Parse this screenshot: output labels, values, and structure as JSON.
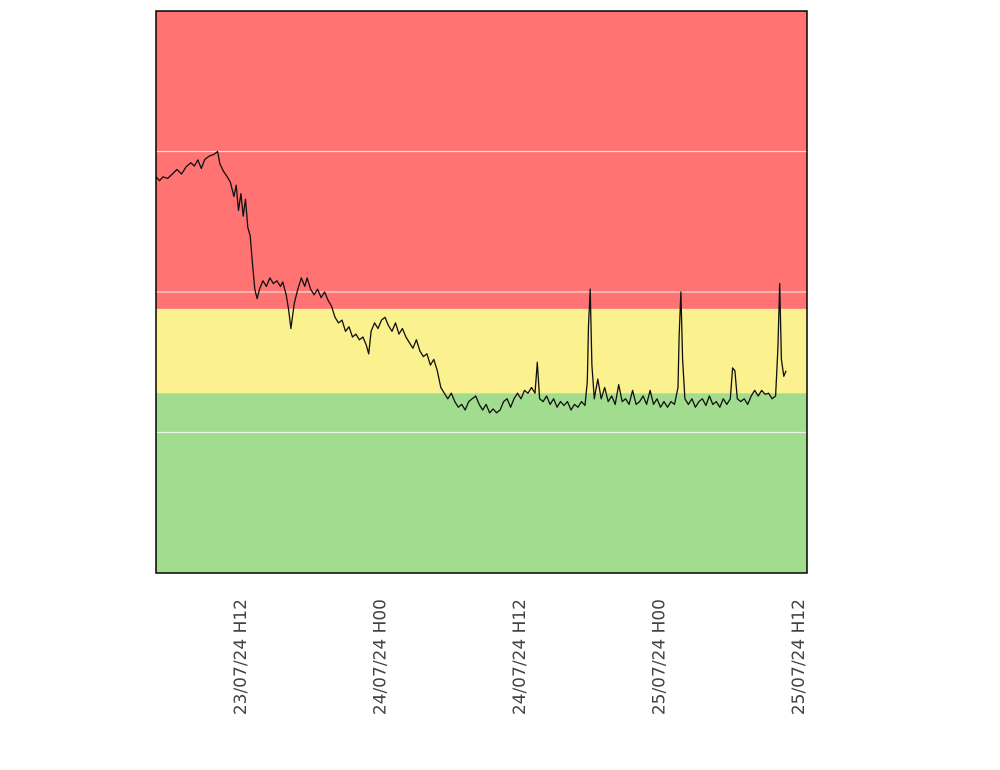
{
  "chart_data": {
    "type": "line",
    "title": "",
    "xlabel": "",
    "ylabel": "",
    "x_ticks": [
      "23/07/24 H12",
      "24/07/24 H00",
      "24/07/24 H12",
      "25/07/24 H00",
      "25/07/24 H12"
    ],
    "x_range": [
      "23/07/24 H04",
      "25/07/24 H12"
    ],
    "y_range": [
      0,
      100
    ],
    "grid": true,
    "grid_y": [
      25,
      50,
      75
    ],
    "bands": [
      {
        "from": 0,
        "to": 32,
        "color": "#a2dc8e"
      },
      {
        "from": 32,
        "to": 47,
        "color": "#fbf18f"
      },
      {
        "from": 47,
        "to": 100,
        "color": "#ff7373"
      }
    ],
    "line_color": "#111111",
    "series": [
      {
        "values": [
          [
            0.0,
            70.5
          ],
          [
            0.3,
            69.8
          ],
          [
            0.6,
            70.5
          ],
          [
            1.0,
            70.2
          ],
          [
            1.4,
            71.0
          ],
          [
            1.8,
            71.8
          ],
          [
            2.2,
            71.0
          ],
          [
            2.6,
            72.3
          ],
          [
            3.0,
            73.0
          ],
          [
            3.3,
            72.4
          ],
          [
            3.6,
            73.5
          ],
          [
            3.9,
            72.0
          ],
          [
            4.2,
            73.6
          ],
          [
            4.6,
            74.2
          ],
          [
            5.0,
            74.5
          ],
          [
            5.3,
            75.0
          ],
          [
            5.5,
            72.8
          ],
          [
            5.8,
            71.5
          ],
          [
            6.1,
            70.6
          ],
          [
            6.4,
            69.5
          ],
          [
            6.7,
            67.0
          ],
          [
            6.9,
            69.0
          ],
          [
            7.1,
            64.5
          ],
          [
            7.3,
            67.5
          ],
          [
            7.5,
            63.5
          ],
          [
            7.7,
            66.5
          ],
          [
            7.9,
            61.5
          ],
          [
            8.1,
            60.0
          ],
          [
            8.3,
            55.0
          ],
          [
            8.5,
            50.5
          ],
          [
            8.7,
            48.8
          ],
          [
            8.9,
            50.5
          ],
          [
            9.2,
            52.0
          ],
          [
            9.5,
            51.0
          ],
          [
            9.8,
            52.5
          ],
          [
            10.1,
            51.5
          ],
          [
            10.4,
            52.0
          ],
          [
            10.7,
            51.0
          ],
          [
            10.9,
            51.8
          ],
          [
            11.2,
            49.5
          ],
          [
            11.4,
            47.0
          ],
          [
            11.6,
            43.5
          ],
          [
            11.9,
            48.0
          ],
          [
            12.2,
            50.5
          ],
          [
            12.5,
            52.5
          ],
          [
            12.8,
            51.0
          ],
          [
            13.0,
            52.5
          ],
          [
            13.3,
            50.5
          ],
          [
            13.6,
            49.5
          ],
          [
            13.9,
            50.5
          ],
          [
            14.2,
            49.0
          ],
          [
            14.5,
            50.0
          ],
          [
            14.8,
            48.5
          ],
          [
            15.1,
            47.5
          ],
          [
            15.4,
            45.5
          ],
          [
            15.7,
            44.5
          ],
          [
            16.0,
            45.0
          ],
          [
            16.3,
            43.0
          ],
          [
            16.6,
            43.8
          ],
          [
            16.9,
            42.0
          ],
          [
            17.2,
            42.5
          ],
          [
            17.5,
            41.5
          ],
          [
            17.8,
            42.0
          ],
          [
            18.1,
            40.5
          ],
          [
            18.3,
            39.0
          ],
          [
            18.5,
            43.0
          ],
          [
            18.8,
            44.5
          ],
          [
            19.1,
            43.5
          ],
          [
            19.4,
            45.0
          ],
          [
            19.7,
            45.5
          ],
          [
            20.0,
            44.0
          ],
          [
            20.3,
            43.0
          ],
          [
            20.6,
            44.5
          ],
          [
            20.9,
            42.5
          ],
          [
            21.2,
            43.5
          ],
          [
            21.5,
            42.0
          ],
          [
            21.8,
            41.0
          ],
          [
            22.1,
            40.0
          ],
          [
            22.4,
            41.5
          ],
          [
            22.7,
            39.5
          ],
          [
            23.0,
            38.5
          ],
          [
            23.3,
            39.0
          ],
          [
            23.6,
            37.0
          ],
          [
            23.9,
            38.0
          ],
          [
            24.2,
            36.0
          ],
          [
            24.5,
            33.0
          ],
          [
            24.8,
            32.0
          ],
          [
            25.1,
            31.0
          ],
          [
            25.4,
            32.0
          ],
          [
            25.7,
            30.5
          ],
          [
            26.0,
            29.5
          ],
          [
            26.3,
            30.0
          ],
          [
            26.6,
            29.0
          ],
          [
            26.9,
            30.5
          ],
          [
            27.2,
            31.0
          ],
          [
            27.5,
            31.5
          ],
          [
            27.8,
            30.0
          ],
          [
            28.1,
            29.0
          ],
          [
            28.4,
            30.0
          ],
          [
            28.7,
            28.5
          ],
          [
            29.0,
            29.2
          ],
          [
            29.3,
            28.5
          ],
          [
            29.6,
            29.0
          ],
          [
            29.9,
            30.5
          ],
          [
            30.2,
            31.0
          ],
          [
            30.5,
            29.5
          ],
          [
            30.8,
            31.0
          ],
          [
            31.1,
            32.0
          ],
          [
            31.4,
            31.0
          ],
          [
            31.7,
            32.5
          ],
          [
            32.0,
            32.0
          ],
          [
            32.3,
            33.0
          ],
          [
            32.6,
            32.0
          ],
          [
            32.8,
            37.5
          ],
          [
            33.0,
            31.0
          ],
          [
            33.3,
            30.5
          ],
          [
            33.6,
            31.5
          ],
          [
            33.9,
            30.0
          ],
          [
            34.2,
            31.0
          ],
          [
            34.5,
            29.5
          ],
          [
            34.8,
            30.5
          ],
          [
            35.1,
            29.8
          ],
          [
            35.4,
            30.5
          ],
          [
            35.7,
            29.0
          ],
          [
            36.0,
            30.0
          ],
          [
            36.3,
            29.5
          ],
          [
            36.6,
            30.5
          ],
          [
            36.9,
            29.8
          ],
          [
            37.1,
            34.0
          ],
          [
            37.2,
            44.0
          ],
          [
            37.35,
            50.5
          ],
          [
            37.5,
            37.0
          ],
          [
            37.7,
            31.0
          ],
          [
            38.0,
            34.5
          ],
          [
            38.3,
            31.0
          ],
          [
            38.6,
            33.0
          ],
          [
            38.9,
            30.5
          ],
          [
            39.2,
            31.5
          ],
          [
            39.5,
            30.0
          ],
          [
            39.8,
            33.5
          ],
          [
            40.1,
            30.5
          ],
          [
            40.4,
            31.0
          ],
          [
            40.7,
            30.0
          ],
          [
            41.0,
            32.5
          ],
          [
            41.3,
            30.0
          ],
          [
            41.6,
            30.5
          ],
          [
            41.9,
            31.5
          ],
          [
            42.2,
            30.0
          ],
          [
            42.5,
            32.5
          ],
          [
            42.8,
            30.0
          ],
          [
            43.1,
            31.0
          ],
          [
            43.4,
            29.5
          ],
          [
            43.7,
            30.5
          ],
          [
            44.0,
            29.5
          ],
          [
            44.3,
            30.5
          ],
          [
            44.6,
            30.0
          ],
          [
            44.9,
            33.0
          ],
          [
            45.0,
            42.0
          ],
          [
            45.15,
            50.0
          ],
          [
            45.3,
            38.0
          ],
          [
            45.5,
            31.0
          ],
          [
            45.8,
            30.0
          ],
          [
            46.1,
            31.0
          ],
          [
            46.4,
            29.5
          ],
          [
            46.7,
            30.5
          ],
          [
            47.0,
            31.0
          ],
          [
            47.3,
            29.8
          ],
          [
            47.6,
            31.5
          ],
          [
            47.9,
            30.0
          ],
          [
            48.2,
            30.5
          ],
          [
            48.5,
            29.5
          ],
          [
            48.8,
            31.0
          ],
          [
            49.1,
            30.0
          ],
          [
            49.4,
            31.0
          ],
          [
            49.6,
            36.5
          ],
          [
            49.8,
            36.0
          ],
          [
            50.0,
            31.0
          ],
          [
            50.3,
            30.5
          ],
          [
            50.6,
            31.0
          ],
          [
            50.9,
            30.0
          ],
          [
            51.2,
            31.5
          ],
          [
            51.5,
            32.5
          ],
          [
            51.8,
            31.5
          ],
          [
            52.1,
            32.5
          ],
          [
            52.4,
            31.8
          ],
          [
            52.7,
            32.0
          ],
          [
            53.0,
            31.0
          ],
          [
            53.3,
            31.5
          ],
          [
            53.5,
            40.0
          ],
          [
            53.65,
            51.5
          ],
          [
            53.8,
            38.0
          ],
          [
            54.0,
            35.0
          ],
          [
            54.2,
            36.0
          ]
        ]
      }
    ]
  }
}
